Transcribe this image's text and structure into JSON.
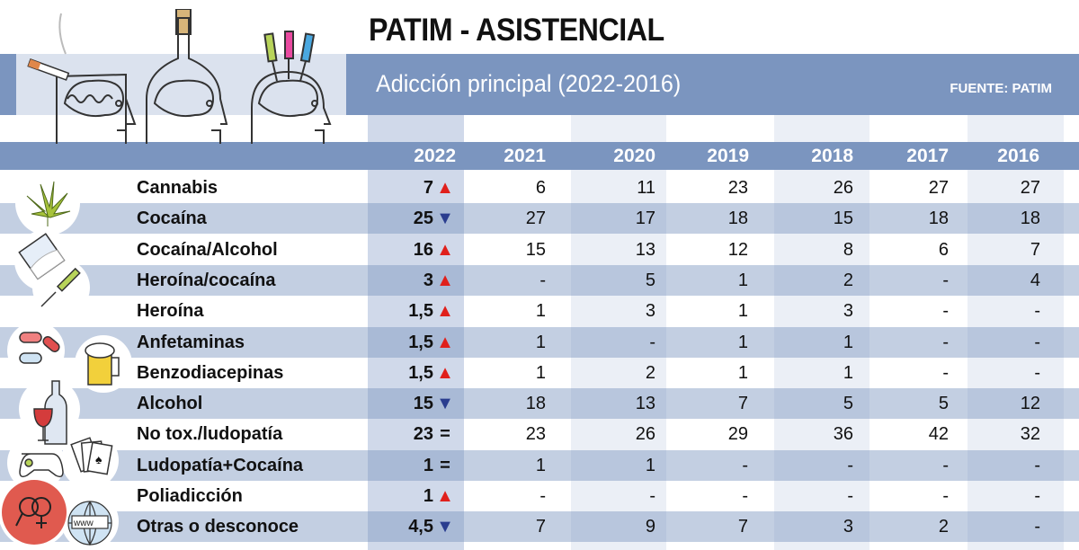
{
  "title": "PATIM - ASISTENCIAL",
  "subtitle": "Adicción principal (2022-2016)",
  "source": "FUENTE: PATIM",
  "colors": {
    "band": "#7b95bf",
    "row_alt": "#c5d1e4",
    "up": "#e0201c",
    "down": "#2a3d8f"
  },
  "years": [
    "2022",
    "2021",
    "2020",
    "2019",
    "2018",
    "2017",
    "2016"
  ],
  "rows": [
    {
      "label": "Cannabis",
      "values": [
        "7",
        "6",
        "11",
        "23",
        "26",
        "27",
        "27"
      ],
      "trend": "up",
      "trend_symbol": "▲"
    },
    {
      "label": "Cocaína",
      "values": [
        "25",
        "27",
        "17",
        "18",
        "15",
        "18",
        "18"
      ],
      "trend": "down",
      "trend_symbol": "▼"
    },
    {
      "label": "Cocaína/Alcohol",
      "values": [
        "16",
        "15",
        "13",
        "12",
        "8",
        "6",
        "7"
      ],
      "trend": "up",
      "trend_symbol": "▲"
    },
    {
      "label": "Heroína/cocaína",
      "values": [
        "3",
        "-",
        "5",
        "1",
        "2",
        "-",
        "4"
      ],
      "trend": "up",
      "trend_symbol": "▲"
    },
    {
      "label": "Heroína",
      "values": [
        "1,5",
        "1",
        "3",
        "1",
        "3",
        "-",
        "-"
      ],
      "trend": "up",
      "trend_symbol": "▲"
    },
    {
      "label": "Anfetaminas",
      "values": [
        "1,5",
        "1",
        "-",
        "1",
        "1",
        "-",
        "-"
      ],
      "trend": "up",
      "trend_symbol": "▲"
    },
    {
      "label": "Benzodiacepinas",
      "values": [
        "1,5",
        "1",
        "2",
        "1",
        "1",
        "-",
        "-"
      ],
      "trend": "up",
      "trend_symbol": "▲"
    },
    {
      "label": "Alcohol",
      "values": [
        "15",
        "18",
        "13",
        "7",
        "5",
        "5",
        "12"
      ],
      "trend": "down",
      "trend_symbol": "▼"
    },
    {
      "label": "No tox./ludopatía",
      "values": [
        "23",
        "23",
        "26",
        "29",
        "36",
        "42",
        "32"
      ],
      "trend": "eq",
      "trend_symbol": "="
    },
    {
      "label": "Ludopatía+Cocaína",
      "values": [
        "1",
        "1",
        "1",
        "-",
        "-",
        "-",
        "-"
      ],
      "trend": "eq",
      "trend_symbol": "="
    },
    {
      "label": "Poliadicción",
      "values": [
        "1",
        "-",
        "-",
        "-",
        "-",
        "-",
        "-"
      ],
      "trend": "up",
      "trend_symbol": "▲"
    },
    {
      "label": "Otras o desconoce",
      "values": [
        "4,5",
        "7",
        "9",
        "7",
        "3",
        "2",
        "-"
      ],
      "trend": "down",
      "trend_symbol": "▼"
    }
  ],
  "icons": [
    "cigarette-head-icon",
    "bottle-head-icon",
    "syringes-head-icon",
    "cannabis-leaf-icon",
    "powder-bag-icon",
    "syringe-icon",
    "pills-icon",
    "beer-mug-icon",
    "wine-bottle-icon",
    "gamepad-icon",
    "playing-cards-icon",
    "gender-symbols-icon",
    "www-globe-icon"
  ]
}
